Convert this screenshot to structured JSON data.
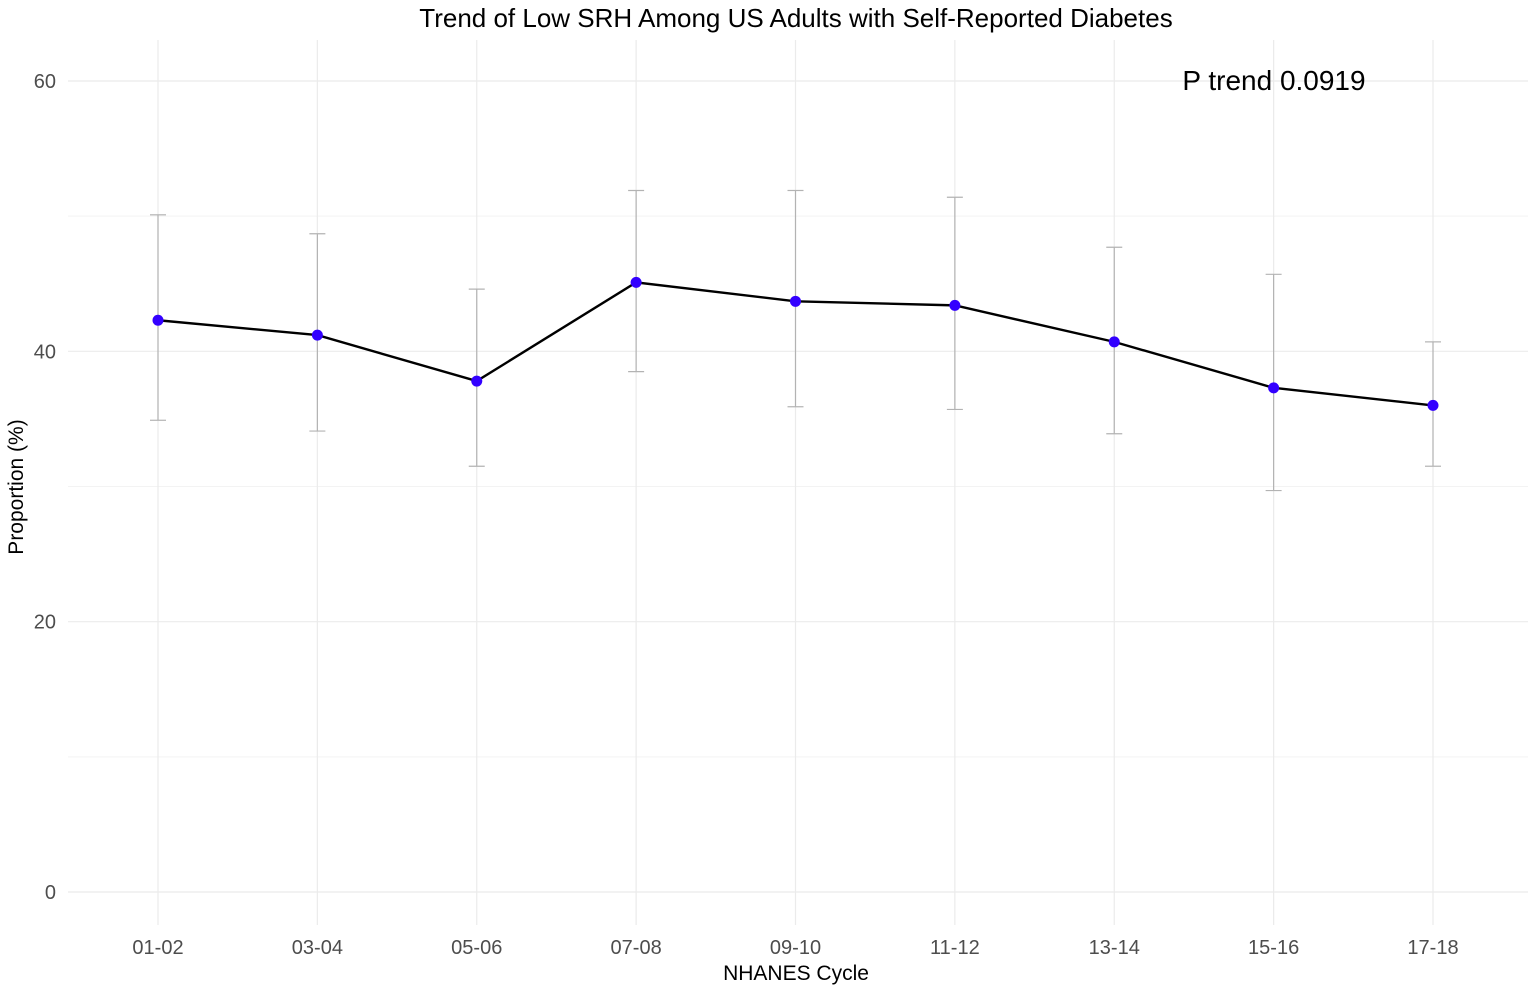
{
  "chart_data": {
    "type": "line",
    "title": "Trend of Low SRH Among US Adults with Self-Reported Diabetes",
    "xlabel": "NHANES Cycle",
    "ylabel": "Proportion (%)",
    "categories": [
      "01-02",
      "03-04",
      "05-06",
      "07-08",
      "09-10",
      "11-12",
      "13-14",
      "15-16",
      "17-18"
    ],
    "series": [
      {
        "values": [
          42.3,
          41.2,
          37.8,
          45.1,
          43.7,
          43.4,
          40.7,
          37.3,
          36.0
        ],
        "lower": [
          34.9,
          34.1,
          31.5,
          38.5,
          35.9,
          35.7,
          33.9,
          29.7,
          31.5
        ],
        "upper": [
          50.1,
          48.7,
          44.6,
          51.9,
          51.9,
          51.4,
          47.7,
          45.7,
          40.7
        ],
        "color": "#3300ff"
      }
    ],
    "ylim": [
      -3,
      63
    ],
    "yticks": [
      0,
      20,
      40,
      60
    ],
    "yminor": [
      10,
      30,
      50
    ],
    "grid": true,
    "annotation": "P trend 0.0919",
    "line_color": "#000000",
    "errorbar_color": "#b3b3b3"
  }
}
